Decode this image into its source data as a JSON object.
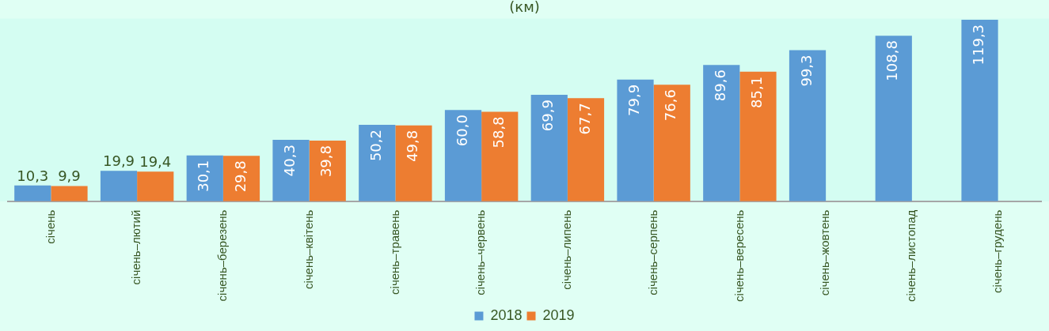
{
  "chart_data": {
    "type": "bar",
    "title": "(км)",
    "categories": [
      "січень",
      "січень–лютий",
      "січень–березень",
      "січень–квітень",
      "січень–травень",
      "січень–червень",
      "січень–липень",
      "січень–серпень",
      "січень–вересень",
      "січень–жовтень",
      "січень–листопад",
      "січень–грудень"
    ],
    "series": [
      {
        "name": "2018",
        "color": "#5b9bd5",
        "values": [
          10.3,
          19.9,
          30.1,
          40.3,
          50.2,
          60.0,
          69.9,
          79.9,
          89.6,
          99.3,
          108.8,
          119.3
        ],
        "value_labels": [
          "10,3",
          "19,9",
          "30,1",
          "40,3",
          "50,2",
          "60,0",
          "69,9",
          "79,9",
          "89,6",
          "99,3",
          "108,8",
          "119,3"
        ]
      },
      {
        "name": "2019",
        "color": "#ed7d31",
        "values": [
          9.9,
          19.4,
          29.8,
          39.8,
          49.8,
          58.8,
          67.7,
          76.6,
          85.1,
          null,
          null,
          null
        ],
        "value_labels": [
          "9,9",
          "19,4",
          "29,8",
          "39,8",
          "49,8",
          "58,8",
          "67,7",
          "76,6",
          "85,1",
          null,
          null,
          null
        ]
      }
    ],
    "grid": false,
    "legend": "bottom"
  }
}
